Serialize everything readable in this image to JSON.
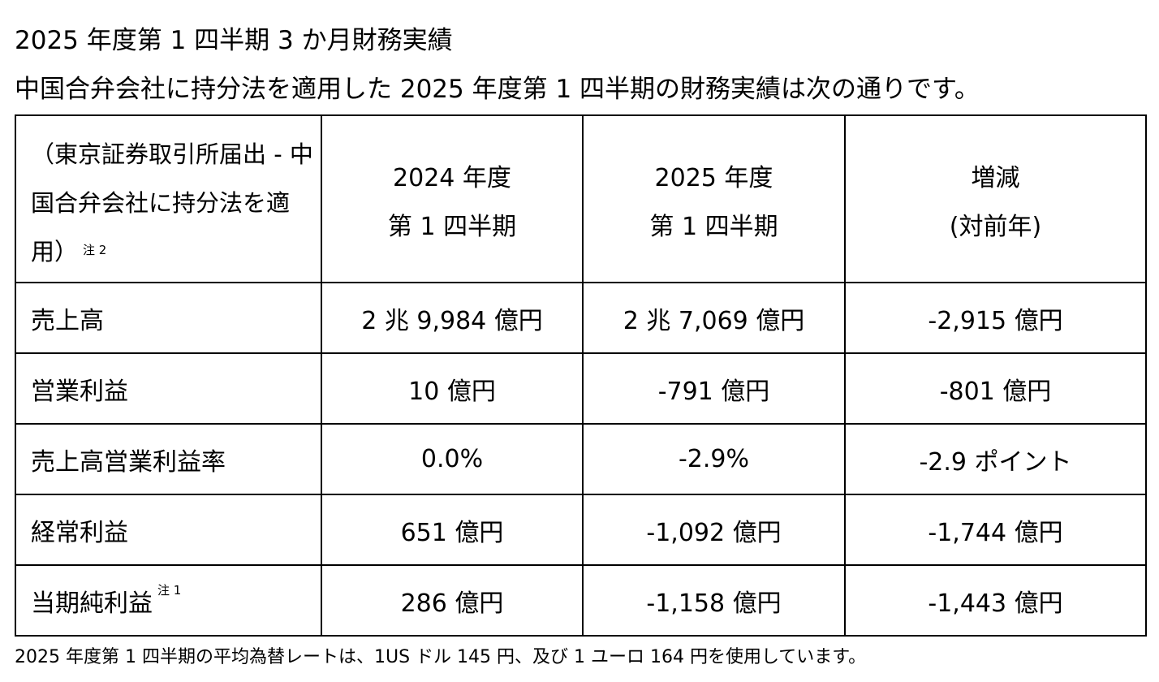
{
  "title": "2025 年度第 1 四半期 3 か月財務実績",
  "subtitle": "中国合弁会社に持分法を適用した 2025 年度第 1 四半期の財務実績は次の通りです。",
  "table": {
    "header_label": "（東京証券取引所届出 - 中国合弁会社に持分法を適用）",
    "header_label_note": "注 2",
    "columns": [
      {
        "line1": "2024 年度",
        "line2": "第 1 四半期"
      },
      {
        "line1": "2025 年度",
        "line2": "第 1 四半期"
      },
      {
        "line1": "増減",
        "line2": "(対前年)"
      }
    ],
    "rows": [
      {
        "label": "売上高",
        "note": "",
        "fy2024": "2 兆 9,984 億円",
        "fy2025": "2 兆 7,069 億円",
        "change": "-2,915 億円"
      },
      {
        "label": "営業利益",
        "note": "",
        "fy2024": "10 億円",
        "fy2025": "-791 億円",
        "change": "-801 億円"
      },
      {
        "label": "売上高営業利益率",
        "note": "",
        "fy2024": "0.0%",
        "fy2025": "-2.9%",
        "change": "-2.9 ポイント"
      },
      {
        "label": "経常利益",
        "note": "",
        "fy2024": "651 億円",
        "fy2025": "-1,092 億円",
        "change": "-1,744 億円"
      },
      {
        "label": "当期純利益",
        "note": "注 1",
        "fy2024": "286 億円",
        "fy2025": "-1,158 億円",
        "change": "-1,443 億円"
      }
    ]
  },
  "footnote": "2025 年度第 1 四半期の平均為替レートは、1US ドル 145 円、及び 1 ユーロ 164 円を使用しています。"
}
